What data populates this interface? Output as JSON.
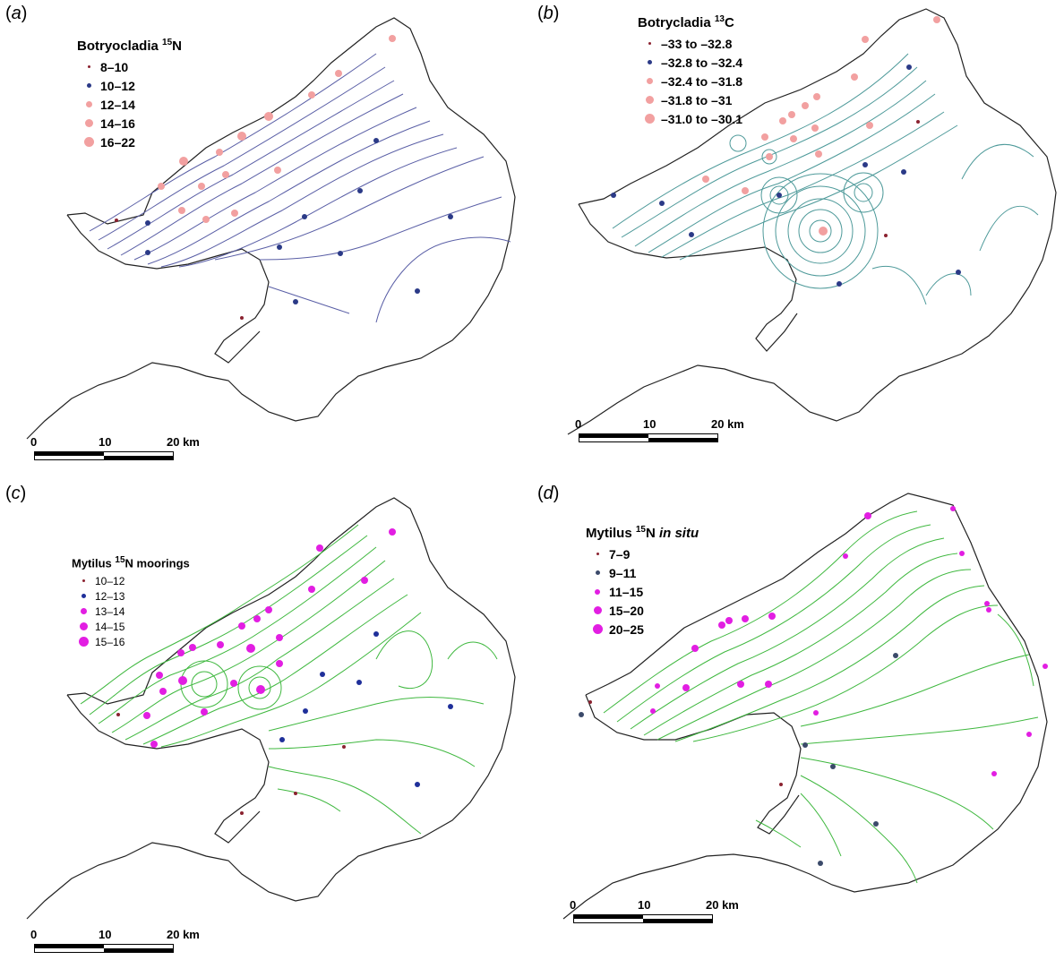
{
  "panels": {
    "a": {
      "letter": "a",
      "legend": {
        "title_pre": "Botryocladia ",
        "title_sup": "15",
        "title_post": "N",
        "items": [
          {
            "label": "8–10",
            "color": "#8b2230",
            "size": 3
          },
          {
            "label": "10–12",
            "color": "#2b3a87",
            "size": 5
          },
          {
            "label": "12–14",
            "color": "#f2a0a0",
            "size": 7
          },
          {
            "label": "14–16",
            "color": "#f2a0a0",
            "size": 9
          },
          {
            "label": "16–22",
            "color": "#f2a0a0",
            "size": 11
          }
        ]
      },
      "scale": {
        "l0": "0",
        "l1": "10",
        "l2": "20 km"
      },
      "contour_color": "#5a5fa6"
    },
    "b": {
      "letter": "b",
      "legend": {
        "title_pre": "Botrycladia ",
        "title_sup": "13",
        "title_post": "C",
        "items": [
          {
            "label": "–33 to –32.8",
            "color": "#8b2230",
            "size": 3
          },
          {
            "label": "–32.8 to –32.4",
            "color": "#2b3a87",
            "size": 5
          },
          {
            "label": "–32.4 to –31.8",
            "color": "#f2a0a0",
            "size": 7
          },
          {
            "label": "–31.8 to –31",
            "color": "#f2a0a0",
            "size": 9
          },
          {
            "label": "–31.0 to –30.1",
            "color": "#f2a0a0",
            "size": 11
          }
        ]
      },
      "scale": {
        "l0": "0",
        "l1": "10",
        "l2": "20 km"
      },
      "contour_color": "#4e9a9a"
    },
    "c": {
      "letter": "c",
      "legend": {
        "title_pre": "Mytilus ",
        "title_sup": "15",
        "title_post": "N moorings",
        "items": [
          {
            "label": "10–12",
            "color": "#8b2230",
            "size": 3
          },
          {
            "label": "12–13",
            "color": "#1f2f9a",
            "size": 5
          },
          {
            "label": "13–14",
            "color": "#e21ee2",
            "size": 7
          },
          {
            "label": "14–15",
            "color": "#e21ee2",
            "size": 9
          },
          {
            "label": "15–16",
            "color": "#e21ee2",
            "size": 11
          }
        ]
      },
      "scale": {
        "l0": "0",
        "l1": "10",
        "l2": "20 km"
      },
      "contour_color": "#3fb83f"
    },
    "d": {
      "letter": "d",
      "legend": {
        "title_pre": "Mytilus ",
        "title_sup": "15",
        "title_post": "N ",
        "title_italic": "in situ",
        "items": [
          {
            "label": "7–9",
            "color": "#8b2230",
            "size": 3
          },
          {
            "label": "9–11",
            "color": "#3b4a6a",
            "size": 5
          },
          {
            "label": "11–15",
            "color": "#e21ee2",
            "size": 6
          },
          {
            "label": "15–20",
            "color": "#e21ee2",
            "size": 9
          },
          {
            "label": "20–25",
            "color": "#e21ee2",
            "size": 11
          }
        ]
      },
      "scale": {
        "l0": "0",
        "l1": "10",
        "l2": "20 km"
      },
      "contour_color": "#3fb83f"
    }
  }
}
